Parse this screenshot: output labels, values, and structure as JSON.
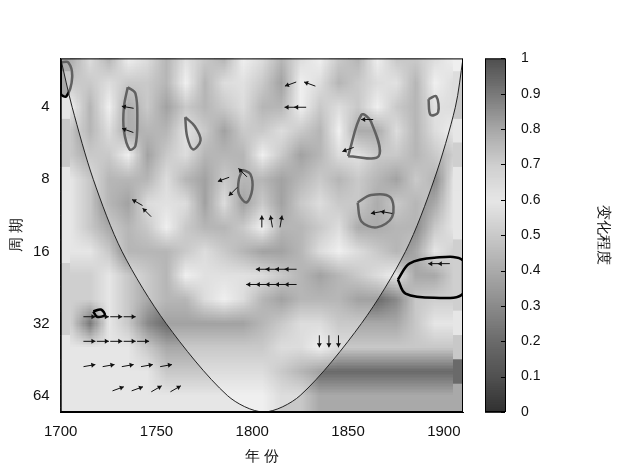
{
  "chart_data": {
    "type": "heatmap",
    "x_label": "年 份",
    "y_label": "周 期",
    "xlim": [
      1700,
      1910
    ],
    "xticks": [
      1700,
      1750,
      1800,
      1850,
      1900
    ],
    "ylim": [
      2.5,
      75
    ],
    "yticks": [
      4,
      8,
      16,
      32,
      64
    ],
    "log": "y",
    "cells": {
      "x": [
        1705,
        1715,
        1725,
        1735,
        1745,
        1755,
        1765,
        1775,
        1785,
        1795,
        1805,
        1815,
        1825,
        1835,
        1845,
        1855,
        1865,
        1875,
        1885,
        1895,
        1905
      ],
      "y": [
        2.5,
        3.2,
        4,
        5,
        6.3,
        8,
        10,
        12.7,
        16,
        20,
        25,
        32,
        40,
        51,
        64,
        80
      ],
      "z": [
        [
          0.9,
          0.5,
          0.3,
          0.6,
          0.5,
          0.3,
          0.7,
          0.4,
          0.3,
          0.6,
          0.5,
          0.3,
          0.5,
          0.6,
          0.4,
          0.3,
          0.6,
          0.8,
          0.4,
          0.5,
          0.6
        ],
        [
          0.8,
          0.4,
          0.5,
          0.8,
          0.4,
          0.3,
          0.6,
          0.3,
          0.5,
          0.7,
          0.4,
          0.2,
          0.6,
          0.5,
          0.3,
          0.4,
          0.5,
          0.7,
          0.3,
          0.6,
          0.5
        ],
        [
          0.6,
          0.3,
          0.6,
          0.9,
          0.4,
          0.2,
          0.8,
          0.3,
          0.4,
          0.5,
          0.3,
          0.3,
          0.6,
          0.4,
          0.5,
          0.8,
          0.6,
          0.4,
          0.3,
          0.7,
          0.5
        ],
        [
          0.5,
          0.3,
          0.5,
          0.9,
          0.3,
          0.3,
          0.7,
          0.4,
          0.2,
          0.4,
          0.4,
          0.5,
          0.4,
          0.3,
          0.6,
          0.9,
          0.9,
          0.5,
          0.3,
          0.5,
          0.6
        ],
        [
          0.5,
          0.4,
          0.4,
          0.6,
          0.2,
          0.4,
          0.5,
          0.3,
          0.3,
          0.3,
          0.6,
          0.4,
          0.2,
          0.3,
          0.5,
          0.7,
          0.8,
          0.4,
          0.3,
          0.4,
          0.7
        ],
        [
          0.6,
          0.5,
          0.3,
          0.3,
          0.3,
          0.5,
          0.3,
          0.2,
          0.8,
          0.3,
          0.3,
          0.2,
          0.3,
          0.4,
          0.3,
          0.4,
          0.3,
          0.2,
          0.4,
          0.3,
          0.6
        ],
        [
          0.6,
          0.5,
          0.3,
          0.2,
          0.5,
          0.7,
          0.5,
          0.2,
          0.5,
          0.2,
          0.4,
          0.2,
          0.4,
          0.5,
          0.4,
          0.8,
          0.9,
          0.4,
          0.3,
          0.4,
          0.6
        ],
        [
          0.6,
          0.5,
          0.4,
          0.3,
          0.8,
          0.6,
          0.4,
          0.3,
          0.3,
          0.4,
          0.6,
          0.3,
          0.3,
          0.4,
          0.5,
          0.9,
          0.9,
          0.3,
          0.3,
          0.5,
          0.6
        ],
        [
          0.6,
          0.6,
          0.5,
          0.3,
          0.3,
          0.3,
          0.4,
          0.5,
          0.4,
          0.3,
          0.2,
          0.2,
          0.3,
          0.5,
          0.6,
          0.5,
          0.4,
          0.3,
          0.4,
          0.6,
          0.7
        ],
        [
          0.7,
          0.7,
          0.6,
          0.5,
          0.4,
          0.3,
          0.6,
          0.7,
          0.7,
          0.7,
          0.5,
          0.4,
          0.3,
          0.2,
          0.3,
          0.4,
          0.5,
          0.6,
          0.8,
          0.8,
          0.7
        ],
        [
          0.7,
          0.7,
          0.6,
          0.5,
          0.4,
          0.3,
          0.3,
          0.5,
          0.6,
          0.5,
          0.3,
          0.2,
          0.3,
          0.3,
          0.3,
          0.2,
          0.2,
          0.3,
          0.5,
          0.7,
          0.7
        ],
        [
          0.7,
          0.9,
          0.6,
          0.5,
          0.3,
          0.2,
          0.2,
          0.2,
          0.2,
          0.2,
          0.3,
          0.4,
          0.5,
          0.5,
          0.4,
          0.4,
          0.4,
          0.4,
          0.5,
          0.6,
          0.6
        ],
        [
          0.6,
          0.6,
          0.6,
          0.6,
          0.5,
          0.4,
          0.4,
          0.4,
          0.4,
          0.4,
          0.4,
          0.5,
          0.5,
          0.6,
          0.5,
          0.5,
          0.5,
          0.5,
          0.5,
          0.5,
          0.5
        ],
        [
          0.6,
          0.6,
          0.6,
          0.6,
          0.6,
          0.5,
          0.5,
          0.5,
          0.5,
          0.5,
          0.5,
          0.4,
          0.3,
          0.2,
          0.2,
          0.2,
          0.2,
          0.2,
          0.2,
          0.2,
          0.2
        ],
        [
          0.6,
          0.6,
          0.6,
          0.6,
          0.6,
          0.6,
          0.6,
          0.6,
          0.6,
          0.6,
          0.6,
          0.5,
          0.5,
          0.4,
          0.4,
          0.4,
          0.4,
          0.4,
          0.4,
          0.4,
          0.4
        ],
        [
          0.6,
          0.6,
          0.6,
          0.6,
          0.6,
          0.6,
          0.6,
          0.6,
          0.6,
          0.6,
          0.6,
          0.5,
          0.5,
          0.4,
          0.4,
          0.4,
          0.4,
          0.4,
          0.4,
          0.4,
          0.4
        ]
      ]
    },
    "colorbar": {
      "label": "变化程度",
      "range": [
        0,
        1
      ],
      "ticks": [
        0,
        0.1,
        0.2,
        0.3,
        0.4,
        0.5,
        0.6,
        0.7,
        0.8,
        0.9,
        1
      ]
    },
    "cone_of_influence": [
      [
        1700,
        2.5
      ],
      [
        1706,
        4
      ],
      [
        1717,
        8
      ],
      [
        1732,
        16
      ],
      [
        1755,
        32
      ],
      [
        1787,
        64
      ],
      [
        1806,
        75
      ],
      [
        1825,
        64
      ],
      [
        1857,
        32
      ],
      [
        1880,
        16
      ],
      [
        1895,
        8
      ],
      [
        1906,
        4
      ],
      [
        1910,
        2.5
      ]
    ],
    "significant_regions": [
      [
        [
          1735,
          3.3
        ],
        [
          1739,
          3.5
        ],
        [
          1740,
          4.5
        ],
        [
          1739,
          5.8
        ],
        [
          1736,
          6
        ],
        [
          1733,
          5
        ],
        [
          1733,
          4
        ]
      ],
      [
        [
          1795,
          7.3
        ],
        [
          1799,
          7.6
        ],
        [
          1800,
          8.8
        ],
        [
          1797,
          10
        ],
        [
          1793,
          9.2
        ],
        [
          1793,
          8
        ]
      ],
      [
        [
          1850,
          6.4
        ],
        [
          1857,
          4.3
        ],
        [
          1862,
          4.6
        ],
        [
          1866,
          6.4
        ]
      ],
      [
        [
          1855,
          10
        ],
        [
          1862,
          9.3
        ],
        [
          1872,
          9.5
        ],
        [
          1873,
          11.5
        ],
        [
          1865,
          12.7
        ],
        [
          1857,
          12
        ]
      ],
      [
        [
          1876,
          21
        ],
        [
          1882,
          18
        ],
        [
          1895,
          17
        ],
        [
          1910,
          17.5
        ],
        [
          1910,
          24
        ],
        [
          1895,
          25
        ],
        [
          1880,
          24
        ]
      ],
      [
        [
          1717,
          28.5
        ],
        [
          1721,
          28
        ],
        [
          1723,
          29.5
        ],
        [
          1719,
          30
        ]
      ],
      [
        [
          1700,
          2.6
        ],
        [
          1704,
          2.6
        ],
        [
          1706,
          3
        ],
        [
          1703,
          3.6
        ],
        [
          1700,
          3.5
        ]
      ],
      [
        [
          1765,
          4.4
        ],
        [
          1770,
          4.8
        ],
        [
          1773,
          5.5
        ],
        [
          1769,
          6
        ],
        [
          1766,
          5.3
        ]
      ],
      [
        [
          1892,
          3.7
        ],
        [
          1896,
          3.6
        ],
        [
          1897,
          4.2
        ],
        [
          1893,
          4.3
        ]
      ]
    ],
    "phase_arrows": [
      {
        "x": 1805,
        "period": 19,
        "angle": 180
      },
      {
        "x": 1810,
        "period": 19,
        "angle": 180
      },
      {
        "x": 1815,
        "period": 19,
        "angle": 180
      },
      {
        "x": 1820,
        "period": 19,
        "angle": 180
      },
      {
        "x": 1800,
        "period": 22,
        "angle": 180
      },
      {
        "x": 1805,
        "period": 22,
        "angle": 180
      },
      {
        "x": 1810,
        "period": 22,
        "angle": 180
      },
      {
        "x": 1815,
        "period": 22,
        "angle": 180
      },
      {
        "x": 1820,
        "period": 22,
        "angle": 180
      },
      {
        "x": 1805,
        "period": 12,
        "angle": 90
      },
      {
        "x": 1810,
        "period": 12,
        "angle": 100
      },
      {
        "x": 1815,
        "period": 12,
        "angle": 80
      },
      {
        "x": 1835,
        "period": 38,
        "angle": -90
      },
      {
        "x": 1840,
        "period": 38,
        "angle": -90
      },
      {
        "x": 1845,
        "period": 38,
        "angle": -90
      },
      {
        "x": 1715,
        "period": 30,
        "angle": 0
      },
      {
        "x": 1722,
        "period": 30,
        "angle": 0
      },
      {
        "x": 1729,
        "period": 30,
        "angle": 0
      },
      {
        "x": 1736,
        "period": 30,
        "angle": 0
      },
      {
        "x": 1715,
        "period": 38,
        "angle": 0
      },
      {
        "x": 1722,
        "period": 38,
        "angle": 0
      },
      {
        "x": 1729,
        "period": 38,
        "angle": 0
      },
      {
        "x": 1736,
        "period": 38,
        "angle": 0
      },
      {
        "x": 1743,
        "period": 38,
        "angle": 0
      },
      {
        "x": 1715,
        "period": 48,
        "angle": 10
      },
      {
        "x": 1725,
        "period": 48,
        "angle": 10
      },
      {
        "x": 1735,
        "period": 48,
        "angle": 10
      },
      {
        "x": 1745,
        "period": 48,
        "angle": 10
      },
      {
        "x": 1755,
        "period": 48,
        "angle": 10
      },
      {
        "x": 1730,
        "period": 60,
        "angle": 20
      },
      {
        "x": 1740,
        "period": 60,
        "angle": 20
      },
      {
        "x": 1750,
        "period": 60,
        "angle": 30
      },
      {
        "x": 1760,
        "period": 60,
        "angle": 30
      },
      {
        "x": 1745,
        "period": 11,
        "angle": 135
      },
      {
        "x": 1740,
        "period": 10,
        "angle": 150
      },
      {
        "x": 1790,
        "period": 9,
        "angle": 225
      },
      {
        "x": 1795,
        "period": 7.5,
        "angle": 135
      },
      {
        "x": 1785,
        "period": 8,
        "angle": 200
      },
      {
        "x": 1735,
        "period": 5,
        "angle": 160
      },
      {
        "x": 1735,
        "period": 4,
        "angle": 170
      },
      {
        "x": 1820,
        "period": 4,
        "angle": 180
      },
      {
        "x": 1825,
        "period": 4,
        "angle": 180
      },
      {
        "x": 1820,
        "period": 3.2,
        "angle": 200
      },
      {
        "x": 1830,
        "period": 3.2,
        "angle": 160
      },
      {
        "x": 1850,
        "period": 6,
        "angle": 200
      },
      {
        "x": 1860,
        "period": 4.5,
        "angle": 180
      },
      {
        "x": 1865,
        "period": 11,
        "angle": 190
      },
      {
        "x": 1870,
        "period": 11,
        "angle": 170
      },
      {
        "x": 1895,
        "period": 18,
        "angle": 180
      },
      {
        "x": 1900,
        "period": 18,
        "angle": 180
      }
    ]
  }
}
